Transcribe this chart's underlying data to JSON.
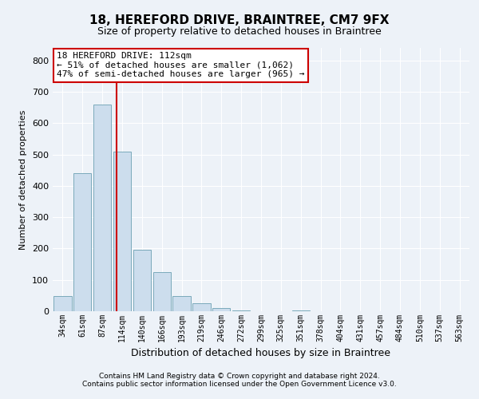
{
  "title": "18, HEREFORD DRIVE, BRAINTREE, CM7 9FX",
  "subtitle": "Size of property relative to detached houses in Braintree",
  "xlabel": "Distribution of detached houses by size in Braintree",
  "ylabel": "Number of detached properties",
  "bar_color": "#ccdded",
  "bar_edge_color": "#7aaabb",
  "background_color": "#edf2f8",
  "grid_color": "#ffffff",
  "categories": [
    "34sqm",
    "61sqm",
    "87sqm",
    "114sqm",
    "140sqm",
    "166sqm",
    "193sqm",
    "219sqm",
    "246sqm",
    "272sqm",
    "299sqm",
    "325sqm",
    "351sqm",
    "378sqm",
    "404sqm",
    "431sqm",
    "457sqm",
    "484sqm",
    "510sqm",
    "537sqm",
    "563sqm"
  ],
  "values": [
    48,
    440,
    660,
    510,
    195,
    125,
    48,
    25,
    10,
    2,
    0,
    0,
    2,
    0,
    0,
    0,
    0,
    0,
    0,
    0,
    0
  ],
  "ylim": [
    0,
    840
  ],
  "yticks": [
    0,
    100,
    200,
    300,
    400,
    500,
    600,
    700,
    800
  ],
  "property_line_x": 2.72,
  "annotation_text": "18 HEREFORD DRIVE: 112sqm\n← 51% of detached houses are smaller (1,062)\n47% of semi-detached houses are larger (965) →",
  "annotation_box_color": "white",
  "annotation_box_edge_color": "#cc0000",
  "property_line_color": "#cc0000",
  "footnote1": "Contains HM Land Registry data © Crown copyright and database right 2024.",
  "footnote2": "Contains public sector information licensed under the Open Government Licence v3.0."
}
